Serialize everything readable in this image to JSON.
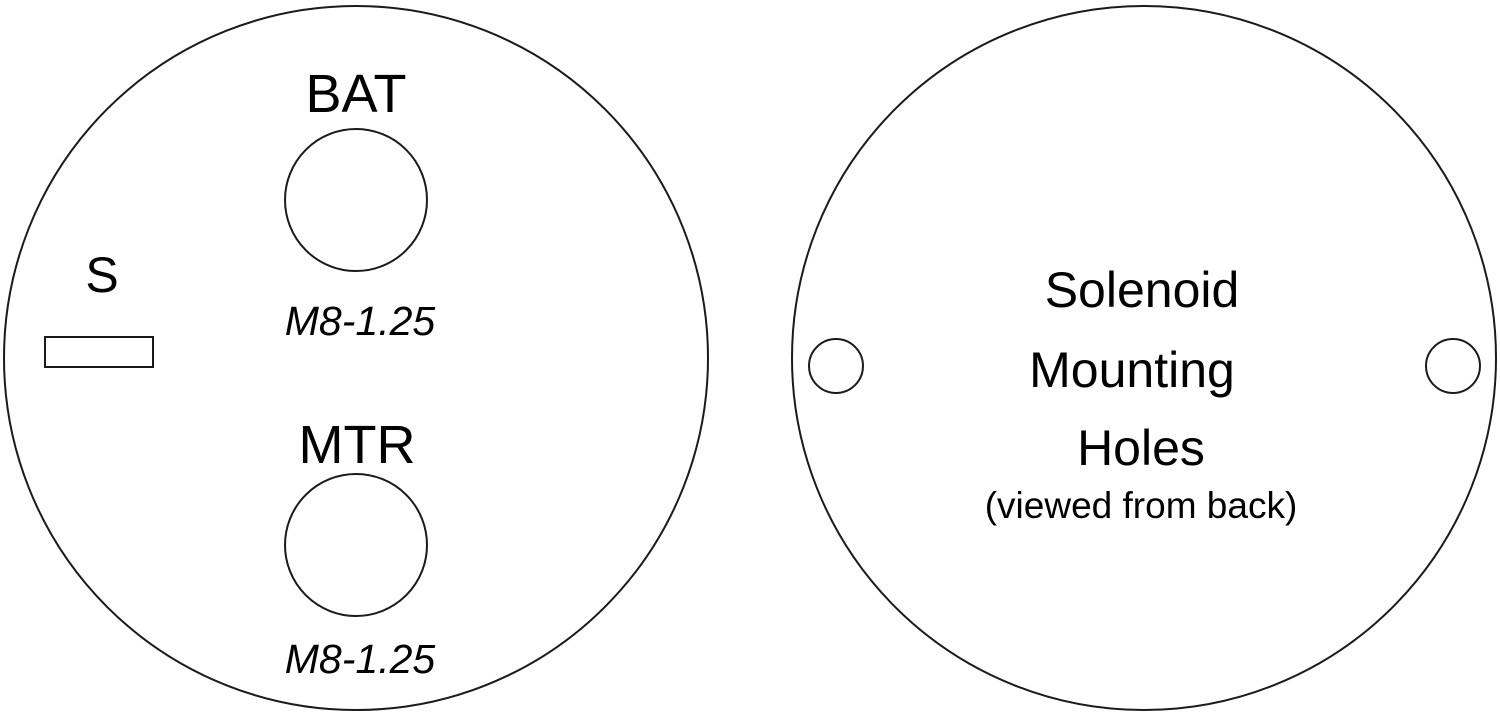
{
  "terminal_side": {
    "labels": {
      "bat": "BAT",
      "bat_thread": "M8-1.25",
      "s": "S",
      "mtr": "MTR",
      "mtr_thread": "M8-1.25"
    }
  },
  "mounting_side": {
    "title_lines": [
      "Solenoid",
      "Mounting",
      "Holes"
    ],
    "subtitle": "(viewed from back)"
  },
  "colors": {
    "stroke": "#1a1a1a",
    "fill": "#ffffff",
    "text": "#000000"
  }
}
